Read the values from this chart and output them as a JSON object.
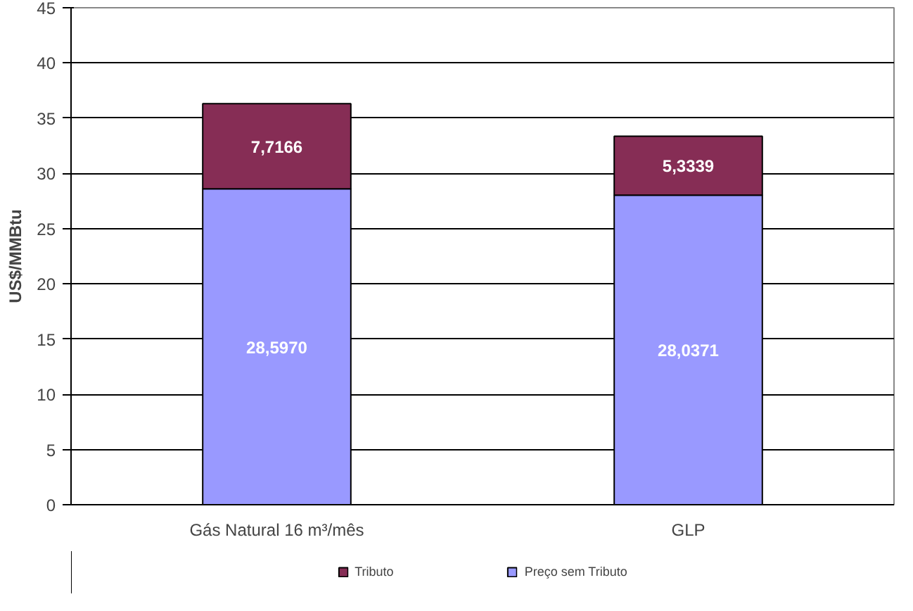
{
  "chart_data": {
    "type": "bar",
    "stacked": true,
    "ylabel": "US$/MMBtu",
    "categories": [
      "Gás Natural 16 m³/mês",
      "GLP"
    ],
    "series": [
      {
        "name": "Preço sem Tributo",
        "color": "#9999ff",
        "values": [
          28.597,
          28.0371
        ],
        "value_labels": [
          "28,5970",
          "28,0371"
        ]
      },
      {
        "name": "Tributo",
        "color": "#862d55",
        "values": [
          7.7166,
          5.3339
        ],
        "value_labels": [
          "7,7166",
          "5,3339"
        ]
      }
    ],
    "ylim": [
      0,
      45
    ],
    "yticks": [
      0,
      5,
      10,
      15,
      20,
      25,
      30,
      35,
      40,
      45
    ],
    "grid": "y",
    "legend": "bottom"
  }
}
